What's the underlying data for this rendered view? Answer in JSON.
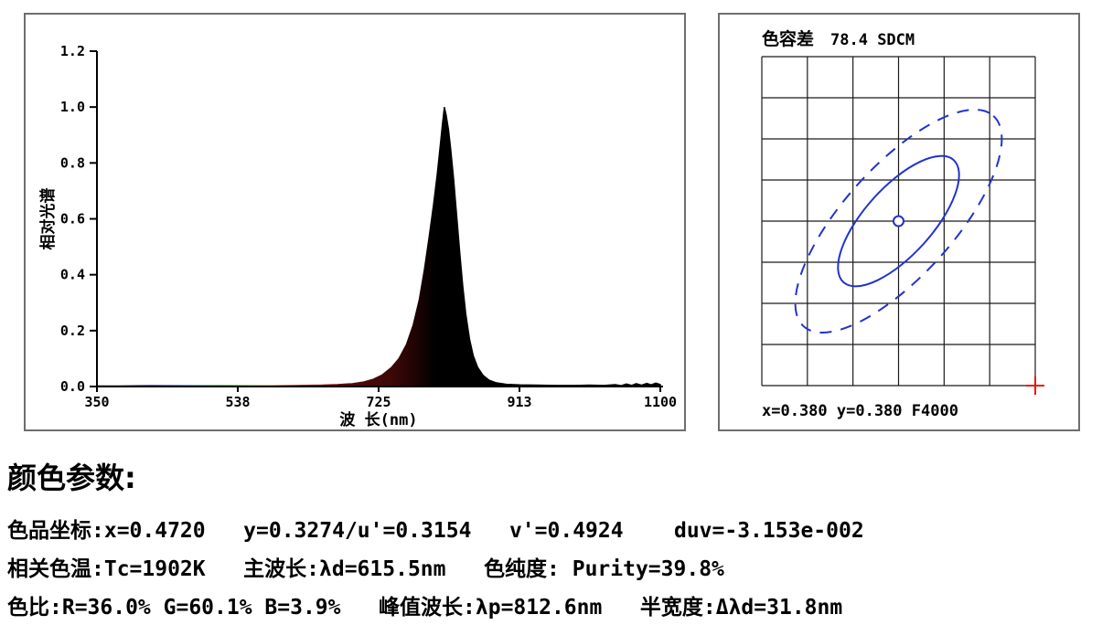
{
  "left_chart": {
    "ylabel": "相对光谱",
    "xlabel": "波 长(nm)",
    "y_tick_labels": [
      "1.2",
      "1.0",
      "0.8",
      "0.6",
      "0.4",
      "0.2",
      "0.0"
    ],
    "x_tick_labels": [
      "350",
      "538",
      "725",
      "913",
      "1100"
    ]
  },
  "right_panel": {
    "title_label": "色容差",
    "title_value": "78.4 SDCM",
    "footer": "x=0.380 y=0.380 F4000"
  },
  "params": {
    "heading": "颜色参数:",
    "lines": [
      "色品坐标:x=0.4720   y=0.3274/u'=0.3154   v'=0.4924    duv=-3.153e-002",
      "相关色温:Tc=1902K   主波长:λd=615.5nm   色纯度: Purity=39.8%",
      "色比:R=36.0% G=60.1% B=3.9%   峰值波长:λp=812.6nm   半宽度:Δλd=31.8nm"
    ]
  },
  "colors": {
    "ellipse": "#2233cc",
    "cross": "#ee1111",
    "grid_line": "#1a1a1a",
    "axis": "#000000",
    "panel_border": "#6e6e6e"
  },
  "chart_data": [
    {
      "type": "area",
      "title": "相对光谱",
      "xlabel": "波 长(nm)",
      "ylabel": "相对光谱",
      "xlim": [
        350,
        1100
      ],
      "ylim": [
        0,
        1.2
      ],
      "x_ticks": [
        350,
        538,
        725,
        913,
        1100
      ],
      "y_ticks": [
        0,
        0.2,
        0.4,
        0.6,
        0.8,
        1.0,
        1.2
      ],
      "peak_wavelength_nm": 812.6,
      "fwhm_nm": 31.8,
      "x": [
        350,
        380,
        420,
        460,
        500,
        540,
        580,
        620,
        650,
        670,
        690,
        705,
        718,
        730,
        742,
        752,
        762,
        771,
        779,
        786,
        792,
        798,
        803,
        807,
        810,
        812.6,
        815,
        818,
        821,
        825,
        829,
        833,
        837,
        841,
        846,
        851,
        857,
        864,
        872,
        882,
        895,
        913,
        935,
        960,
        985,
        1005,
        1025,
        1040,
        1048,
        1055,
        1062,
        1068,
        1075,
        1082,
        1088,
        1094,
        1100
      ],
      "y": [
        0.002,
        0.002,
        0.003,
        0.003,
        0.003,
        0.003,
        0.003,
        0.004,
        0.005,
        0.007,
        0.01,
        0.016,
        0.026,
        0.042,
        0.068,
        0.1,
        0.15,
        0.22,
        0.31,
        0.42,
        0.53,
        0.65,
        0.76,
        0.86,
        0.94,
        1.0,
        0.97,
        0.92,
        0.85,
        0.74,
        0.61,
        0.48,
        0.36,
        0.26,
        0.17,
        0.11,
        0.068,
        0.04,
        0.023,
        0.013,
        0.008,
        0.006,
        0.005,
        0.004,
        0.004,
        0.005,
        0.004,
        0.007,
        0.003,
        0.009,
        0.004,
        0.01,
        0.005,
        0.011,
        0.006,
        0.012,
        0.007
      ],
      "gradient_stops": [
        [
          0,
          "#000000"
        ],
        [
          0.07,
          "#05053a"
        ],
        [
          0.12,
          "#2228c0"
        ],
        [
          0.15,
          "#1a60b8"
        ],
        [
          0.19,
          "#109878"
        ],
        [
          0.225,
          "#18a020"
        ],
        [
          0.27,
          "#6aaa10"
        ],
        [
          0.31,
          "#c59410"
        ],
        [
          0.34,
          "#c4420e"
        ],
        [
          0.37,
          "#a81410"
        ],
        [
          0.42,
          "#650707"
        ],
        [
          0.47,
          "#4a0a0a"
        ],
        [
          0.52,
          "#3e0909"
        ],
        [
          0.56,
          "#230404"
        ],
        [
          0.6,
          "#000000"
        ],
        [
          1,
          "#000000"
        ]
      ]
    },
    {
      "type": "scatter",
      "title": "色容差 78.4 SDCM",
      "sdcm": 78.4,
      "grid": {
        "cols": 6,
        "rows": 8
      },
      "center_point": {
        "x": 0.38,
        "y": 0.38,
        "label": "F4000"
      },
      "ellipses": [
        {
          "style": "solid",
          "rx": 90,
          "ry": 37,
          "angle_deg": -48
        },
        {
          "style": "dashed",
          "rx": 155,
          "ry": 60,
          "angle_deg": -48
        }
      ]
    }
  ]
}
